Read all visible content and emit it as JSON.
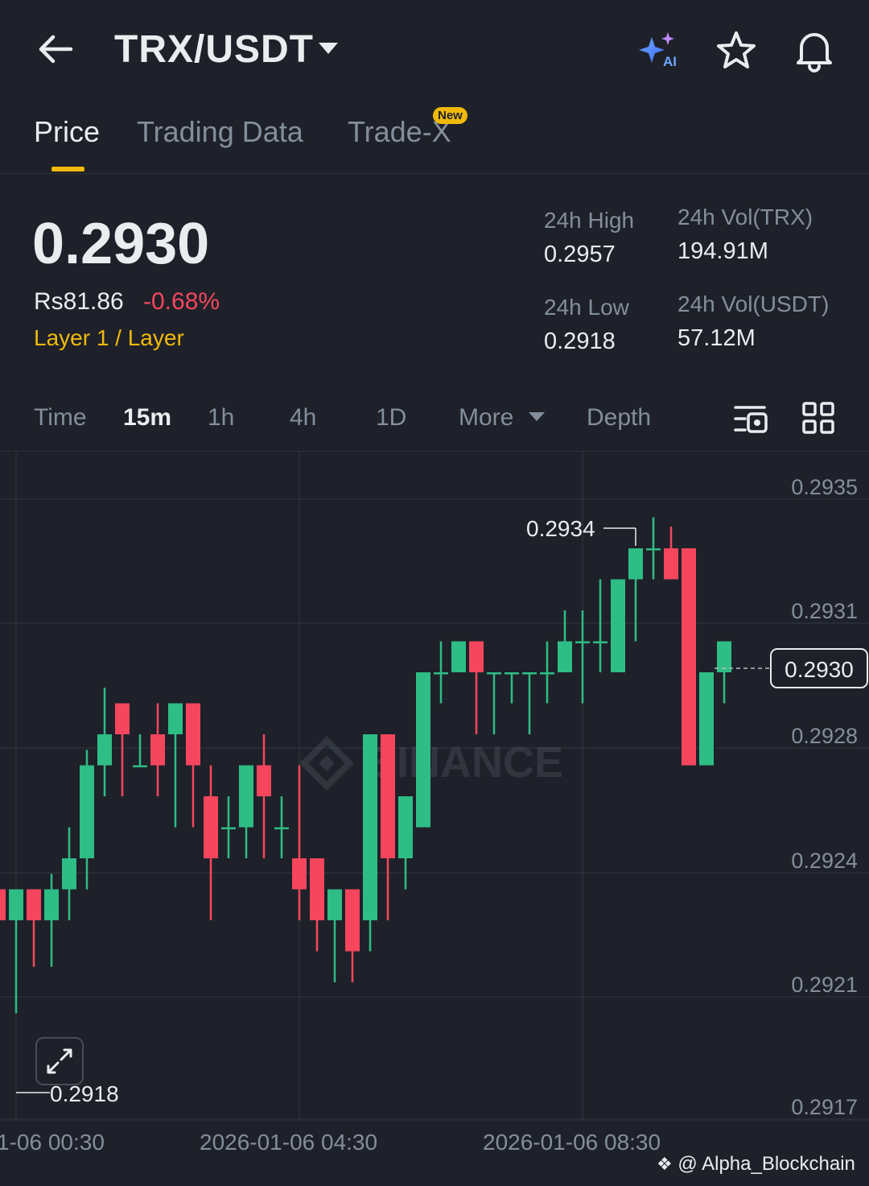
{
  "header": {
    "pair": "TRX/USDT",
    "icons": [
      "back-arrow-icon",
      "chevron-down-icon",
      "ai-sparkle-icon",
      "star-icon",
      "bell-icon"
    ]
  },
  "tabs": [
    {
      "label": "Price",
      "active": true
    },
    {
      "label": "Trading Data",
      "active": false
    },
    {
      "label": "Trade-X",
      "active": false,
      "badge": "New"
    }
  ],
  "ticker": {
    "last_price": "0.2930",
    "fiat_price": "Rs81.86",
    "change_pct": "-0.68%",
    "category": "Layer 1 / Layer",
    "high_label": "24h High",
    "high_value": "0.2957",
    "low_label": "24h Low",
    "low_value": "0.2918",
    "vol_base_label": "24h Vol(TRX)",
    "vol_base_value": "194.91M",
    "vol_quote_label": "24h Vol(USDT)",
    "vol_quote_value": "57.12M"
  },
  "intervals": {
    "items": [
      "Time",
      "15m",
      "1h",
      "4h",
      "1D",
      "More",
      "Depth"
    ],
    "selected": "15m"
  },
  "colors": {
    "up": "#2ebd85",
    "down": "#f6465d",
    "accent": "#f0b90b",
    "background": "#1e2129"
  },
  "chart_data": {
    "type": "candlestick",
    "y_axis_labels": [
      "0.2935",
      "0.2931",
      "0.2928",
      "0.2924",
      "0.2921",
      "0.2917"
    ],
    "x_axis_labels": [
      "1-06 00:30",
      "2026-01-06 04:30",
      "2026-01-06 08:30"
    ],
    "high_marker": "0.2934",
    "low_marker": "0.2918",
    "current_price_label": "0.2930",
    "watermark": "BINANCE",
    "candles": [
      {
        "o": 0.2922,
        "c": 0.2921,
        "h": 0.29222,
        "l": 0.29177
      },
      {
        "o": 0.2921,
        "c": 0.2922,
        "h": 0.2922,
        "l": 0.2918
      },
      {
        "o": 0.2922,
        "c": 0.2921,
        "h": 0.2922,
        "l": 0.29195
      },
      {
        "o": 0.2921,
        "c": 0.2922,
        "h": 0.29225,
        "l": 0.29195
      },
      {
        "o": 0.2922,
        "c": 0.2923,
        "h": 0.2924,
        "l": 0.2921
      },
      {
        "o": 0.2923,
        "c": 0.2926,
        "h": 0.29265,
        "l": 0.2922
      },
      {
        "o": 0.2926,
        "c": 0.2927,
        "h": 0.29285,
        "l": 0.2925
      },
      {
        "o": 0.2928,
        "c": 0.2927,
        "h": 0.2928,
        "l": 0.2925
      },
      {
        "o": 0.2926,
        "c": 0.2926,
        "h": 0.2927,
        "l": 0.2926
      },
      {
        "o": 0.2927,
        "c": 0.2926,
        "h": 0.2928,
        "l": 0.2925
      },
      {
        "o": 0.2927,
        "c": 0.2928,
        "h": 0.2928,
        "l": 0.2924
      },
      {
        "o": 0.2928,
        "c": 0.2926,
        "h": 0.2928,
        "l": 0.2924
      },
      {
        "o": 0.2925,
        "c": 0.2923,
        "h": 0.2926,
        "l": 0.2921
      },
      {
        "o": 0.2924,
        "c": 0.2924,
        "h": 0.2925,
        "l": 0.2923
      },
      {
        "o": 0.2924,
        "c": 0.2926,
        "h": 0.2926,
        "l": 0.2923
      },
      {
        "o": 0.2926,
        "c": 0.2925,
        "h": 0.2927,
        "l": 0.2923
      },
      {
        "o": 0.2924,
        "c": 0.2924,
        "h": 0.2925,
        "l": 0.2923
      },
      {
        "o": 0.2923,
        "c": 0.2922,
        "h": 0.2926,
        "l": 0.2921
      },
      {
        "o": 0.2923,
        "c": 0.2921,
        "h": 0.2923,
        "l": 0.292
      },
      {
        "o": 0.2921,
        "c": 0.2922,
        "h": 0.2922,
        "l": 0.2919
      },
      {
        "o": 0.2922,
        "c": 0.292,
        "h": 0.2922,
        "l": 0.2919
      },
      {
        "o": 0.2921,
        "c": 0.2927,
        "h": 0.2927,
        "l": 0.292
      },
      {
        "o": 0.2927,
        "c": 0.2923,
        "h": 0.2927,
        "l": 0.2921
      },
      {
        "o": 0.2923,
        "c": 0.2925,
        "h": 0.2925,
        "l": 0.2922
      },
      {
        "o": 0.2924,
        "c": 0.2929,
        "h": 0.2929,
        "l": 0.2924
      },
      {
        "o": 0.2929,
        "c": 0.2929,
        "h": 0.293,
        "l": 0.2928
      },
      {
        "o": 0.2929,
        "c": 0.293,
        "h": 0.293,
        "l": 0.2929
      },
      {
        "o": 0.293,
        "c": 0.2929,
        "h": 0.293,
        "l": 0.2927
      },
      {
        "o": 0.2929,
        "c": 0.2929,
        "h": 0.2929,
        "l": 0.2927
      },
      {
        "o": 0.2929,
        "c": 0.2929,
        "h": 0.2929,
        "l": 0.2928
      },
      {
        "o": 0.2929,
        "c": 0.2929,
        "h": 0.2929,
        "l": 0.2927
      },
      {
        "o": 0.2929,
        "c": 0.2929,
        "h": 0.293,
        "l": 0.2928
      },
      {
        "o": 0.2929,
        "c": 0.293,
        "h": 0.2931,
        "l": 0.2929
      },
      {
        "o": 0.293,
        "c": 0.293,
        "h": 0.2931,
        "l": 0.2928
      },
      {
        "o": 0.293,
        "c": 0.293,
        "h": 0.2932,
        "l": 0.2929
      },
      {
        "o": 0.2929,
        "c": 0.2932,
        "h": 0.2932,
        "l": 0.2929
      },
      {
        "o": 0.2932,
        "c": 0.2933,
        "h": 0.2933,
        "l": 0.293
      },
      {
        "o": 0.2933,
        "c": 0.2933,
        "h": 0.2934,
        "l": 0.2932
      },
      {
        "o": 0.2933,
        "c": 0.2932,
        "h": 0.29337,
        "l": 0.2932
      },
      {
        "o": 0.2933,
        "c": 0.2926,
        "h": 0.2933,
        "l": 0.2926
      },
      {
        "o": 0.2926,
        "c": 0.2929,
        "h": 0.2929,
        "l": 0.2926
      },
      {
        "o": 0.2929,
        "c": 0.293,
        "h": 0.293,
        "l": 0.2928
      }
    ]
  },
  "footer": {
    "credit": "@ Alpha_Blockchain"
  }
}
